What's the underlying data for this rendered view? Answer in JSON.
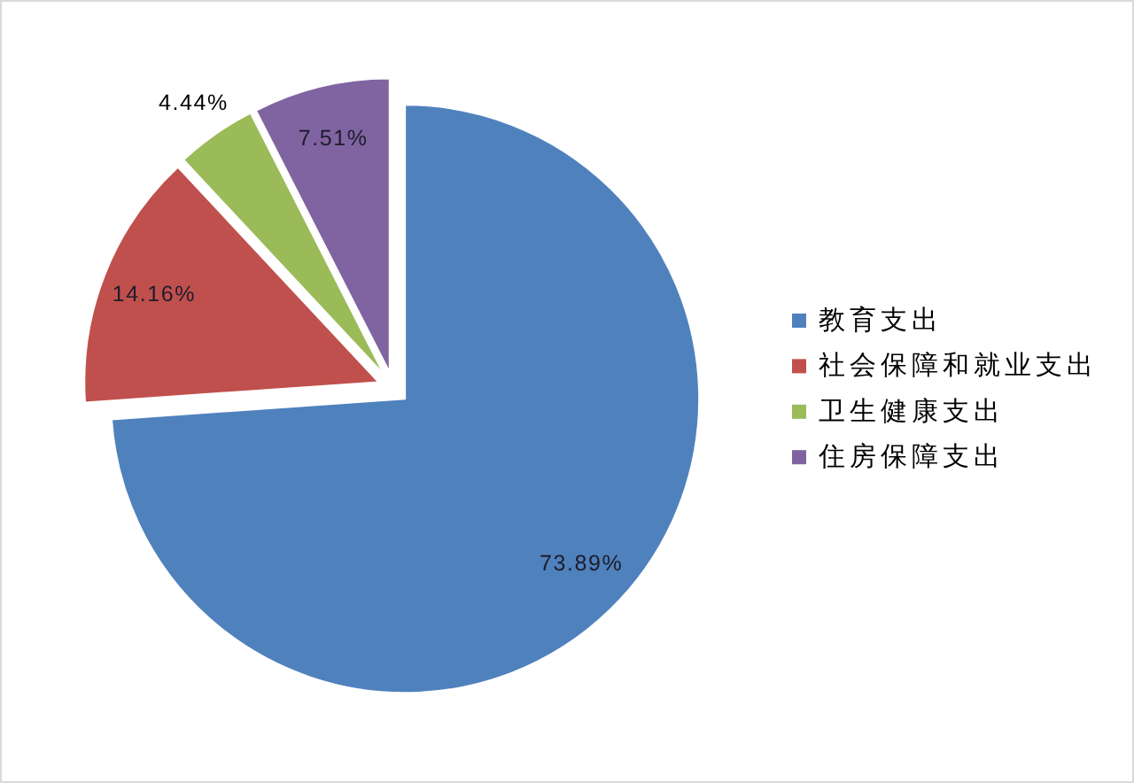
{
  "chart_data": {
    "type": "pie",
    "categories": [
      "教育支出",
      "社会保障和就业支出",
      "卫生健康支出",
      "住房保障支出"
    ],
    "values": [
      73.89,
      14.16,
      4.44,
      7.51
    ],
    "colors": [
      "#4f81bd",
      "#c0504d",
      "#9bbb59",
      "#8064a2"
    ],
    "value_labels": [
      "73.89%",
      "14.16%",
      "4.44%",
      "7.51%"
    ],
    "legend": "right"
  }
}
